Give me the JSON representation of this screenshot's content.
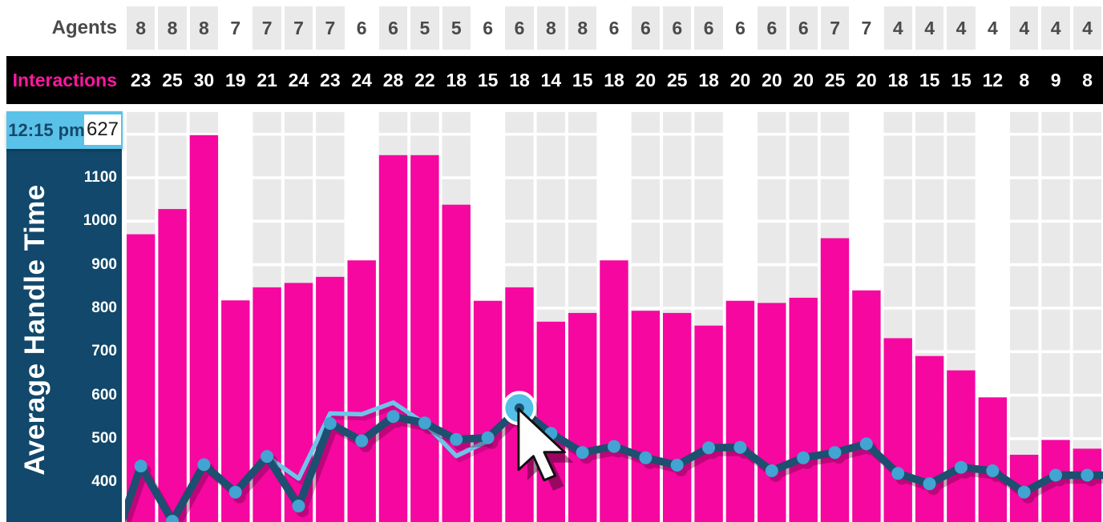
{
  "header": {
    "agents_label": "Agents",
    "interactions_label": "Interactions"
  },
  "tooltip": {
    "time": "12:15 pm",
    "value": "627"
  },
  "chart": {
    "y_axis_title": "Average Handle Time",
    "y_ticks": [
      1100,
      1000,
      900,
      800,
      700,
      600,
      500,
      400
    ]
  },
  "chart_data": {
    "type": "combo-bar-line",
    "columns": 31,
    "agents_row": [
      8,
      8,
      8,
      7,
      7,
      7,
      7,
      6,
      6,
      5,
      5,
      6,
      6,
      8,
      8,
      6,
      6,
      6,
      6,
      6,
      6,
      6,
      7,
      7,
      4,
      4,
      4,
      4,
      4,
      4,
      4
    ],
    "interactions_row": [
      23,
      25,
      30,
      19,
      21,
      24,
      23,
      24,
      28,
      22,
      18,
      15,
      18,
      14,
      15,
      18,
      20,
      25,
      18,
      20,
      20,
      20,
      25,
      20,
      18,
      15,
      15,
      12,
      8,
      9,
      8
    ],
    "bar_series": {
      "name": "average-handle-time-bars",
      "values": [
        970,
        1028,
        1198,
        818,
        848,
        858,
        872,
        910,
        1152,
        1152,
        1038,
        817,
        848,
        769,
        789,
        910,
        794,
        789,
        760,
        817,
        812,
        824,
        961,
        841,
        731,
        690,
        657,
        595,
        463,
        497,
        477
      ]
    },
    "line_series": {
      "name": "average-handle-time-line",
      "values": [
        437,
        310,
        440,
        377,
        459,
        345,
        535,
        495,
        551,
        536,
        498,
        502,
        570,
        512,
        468,
        482,
        456,
        439,
        479,
        480,
        426,
        456,
        468,
        488,
        420,
        396,
        434,
        426,
        377,
        416,
        416
      ]
    },
    "secondary_line_series": {
      "name": "secondary-comparison-line",
      "values": [
        null,
        null,
        null,
        null,
        459,
        408,
        558,
        556,
        583,
        535,
        460,
        495,
        null,
        null,
        null,
        null,
        null,
        null,
        null,
        null,
        null,
        null,
        null,
        null,
        null,
        null,
        null,
        null,
        null,
        null,
        null
      ]
    },
    "hover": {
      "column_index": 12,
      "time": "12:15 pm",
      "value": 627
    },
    "hour_boundary_columns": [
      4,
      8,
      12,
      16,
      20,
      24,
      28
    ],
    "y_axis": {
      "ticks": [
        1100,
        1000,
        900,
        800,
        700,
        600,
        500,
        400
      ],
      "gridline_step": 100,
      "visible_range": [
        308,
        1260
      ]
    },
    "colors": {
      "bar_pink": "#f607a0",
      "line_navy": "#1d4f70",
      "dot_blue": "#41a4d2",
      "secondary_line_blue": "#6cc5e9",
      "hover_dot_fill": "#55bfe8",
      "sidebar_navy": "#11486b",
      "tooltip_blue": "#5ac2e8",
      "stripe_gray": "#e9e9e9",
      "band_black": "#000000",
      "interactions_pink": "#ff17a1",
      "agents_text_gray": "#4a4a4a"
    }
  }
}
